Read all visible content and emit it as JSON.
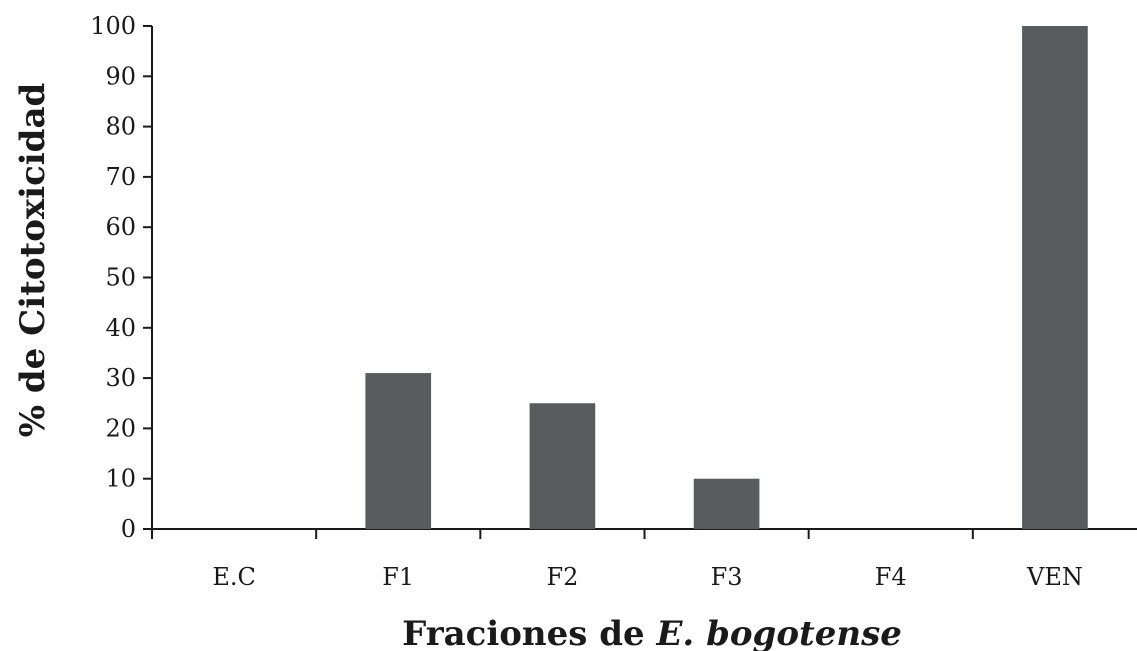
{
  "chart_data": {
    "type": "bar",
    "categories": [
      "E.C",
      "F1",
      "F2",
      "F3",
      "F4",
      "VEN"
    ],
    "values": [
      0,
      31,
      25,
      10,
      0,
      100
    ],
    "xlabel_prefix": "Fraciones de",
    "xlabel_italic": "E. bogotense",
    "ylabel": "% de Citotoxicidad",
    "ylim": [
      0,
      100
    ],
    "yticks": [
      0,
      10,
      20,
      30,
      40,
      50,
      60,
      70,
      80,
      90,
      100
    ],
    "grid": false,
    "legend": "none",
    "bar_color": "#595c5c"
  }
}
